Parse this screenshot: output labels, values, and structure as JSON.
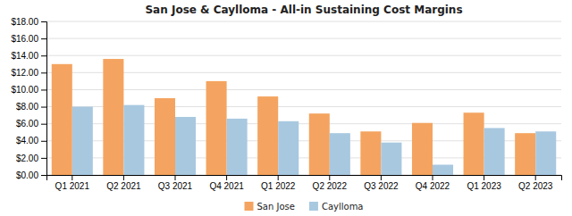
{
  "chart_data": {
    "type": "bar",
    "title": "San Jose & Caylloma - All-in Sustaining Cost Margins",
    "categories": [
      "Q1 2021",
      "Q2 2021",
      "Q3 2021",
      "Q4 2021",
      "Q1 2022",
      "Q2 2022",
      "Q3 2022",
      "Q4 2022",
      "Q1 2023",
      "Q2 2023"
    ],
    "series": [
      {
        "name": "San Jose",
        "color": "#F4A460",
        "values": [
          13.0,
          13.6,
          9.0,
          11.0,
          9.2,
          7.2,
          5.1,
          6.1,
          7.3,
          4.9
        ]
      },
      {
        "name": "Caylloma",
        "color": "#A8C8E0",
        "values": [
          8.0,
          8.2,
          6.8,
          6.6,
          6.3,
          4.9,
          3.8,
          1.2,
          5.5,
          5.1
        ]
      }
    ],
    "ylim": [
      0,
      18
    ],
    "yticks": [
      {
        "value": 0,
        "label": "$0.00"
      },
      {
        "value": 2,
        "label": "$2.00"
      },
      {
        "value": 4,
        "label": "$4.00"
      },
      {
        "value": 6,
        "label": "$6.00"
      },
      {
        "value": 8,
        "label": "$8.00"
      },
      {
        "value": 10,
        "label": "$10.00"
      },
      {
        "value": 12,
        "label": "$12.00"
      },
      {
        "value": 14,
        "label": "$14.00"
      },
      {
        "value": 16,
        "label": "$16.00"
      },
      {
        "value": 18,
        "label": "$18.00"
      }
    ],
    "grid": true,
    "legend": "bottom"
  }
}
